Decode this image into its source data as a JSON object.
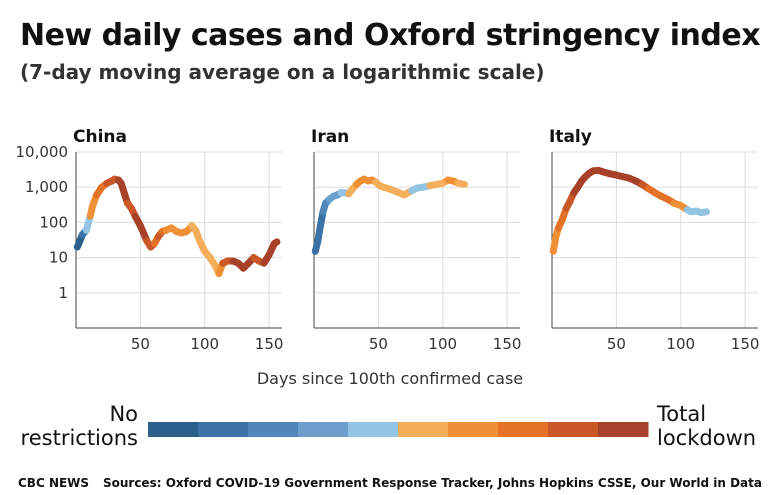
{
  "title": "New daily cases and Oxford stringency index",
  "subtitle": "(7-day moving average on a logarithmic scale)",
  "footer": {
    "brand": "CBC NEWS",
    "sources": "Sources: Oxford COVID-19 Government Response Tracker, Johns Hopkins CSSE, Our World in Data"
  },
  "legend": {
    "low_label_line1": "No",
    "low_label_line2": "restrictions",
    "high_label_line1": "Total",
    "high_label_line2": "lockdown",
    "colors": [
      "#2b5f8c",
      "#3b73a6",
      "#4f87ba",
      "#6c9fcd",
      "#93c4e3",
      "#f5ae5a",
      "#ef9036",
      "#e47328",
      "#c95826",
      "#a8412a"
    ]
  },
  "chart_data": {
    "type": "line",
    "xlabel": "Days since 100th confirmed case",
    "ylabel": "",
    "yscale": "log",
    "ylim": [
      0.1,
      10000
    ],
    "xlim": [
      0,
      160
    ],
    "yticks": [
      {
        "value": 1,
        "label": "1"
      },
      {
        "value": 10,
        "label": "10"
      },
      {
        "value": 100,
        "label": "100"
      },
      {
        "value": 1000,
        "label": "1,000"
      },
      {
        "value": 10000,
        "label": "10,000"
      }
    ],
    "xticks": [
      {
        "value": 50,
        "label": "50"
      },
      {
        "value": 100,
        "label": "100"
      },
      {
        "value": 150,
        "label": "150"
      }
    ],
    "grid": true,
    "color_by": "Oxford stringency index",
    "panels": [
      {
        "name": "China",
        "points": [
          [
            1,
            20,
            0
          ],
          [
            3,
            30,
            0
          ],
          [
            5,
            45,
            1
          ],
          [
            8,
            60,
            4
          ],
          [
            11,
            150,
            6
          ],
          [
            13,
            300,
            6
          ],
          [
            16,
            600,
            7
          ],
          [
            20,
            1000,
            7
          ],
          [
            24,
            1300,
            8
          ],
          [
            28,
            1500,
            8
          ],
          [
            30,
            1700,
            8
          ],
          [
            33,
            1600,
            9
          ],
          [
            35,
            1300,
            9
          ],
          [
            38,
            600,
            9
          ],
          [
            40,
            350,
            8
          ],
          [
            43,
            250,
            8
          ],
          [
            46,
            150,
            9
          ],
          [
            50,
            80,
            9
          ],
          [
            53,
            45,
            9
          ],
          [
            55,
            30,
            8
          ],
          [
            58,
            20,
            8
          ],
          [
            61,
            25,
            7
          ],
          [
            64,
            40,
            8
          ],
          [
            67,
            55,
            7
          ],
          [
            70,
            60,
            6
          ],
          [
            74,
            70,
            6
          ],
          [
            78,
            55,
            6
          ],
          [
            82,
            50,
            6
          ],
          [
            86,
            55,
            6
          ],
          [
            90,
            80,
            5
          ],
          [
            93,
            60,
            5
          ],
          [
            96,
            30,
            5
          ],
          [
            100,
            15,
            5
          ],
          [
            104,
            10,
            5
          ],
          [
            108,
            6,
            5
          ],
          [
            111,
            3.5,
            6
          ],
          [
            114,
            7,
            8
          ],
          [
            118,
            8,
            8
          ],
          [
            122,
            8,
            9
          ],
          [
            126,
            7,
            9
          ],
          [
            130,
            5,
            9
          ],
          [
            134,
            7,
            9
          ],
          [
            138,
            10,
            8
          ],
          [
            142,
            8,
            8
          ],
          [
            146,
            7,
            9
          ],
          [
            150,
            12,
            9
          ],
          [
            154,
            25,
            9
          ],
          [
            156,
            28,
            9
          ]
        ]
      },
      {
        "name": "Iran",
        "points": [
          [
            1,
            15,
            1
          ],
          [
            3,
            30,
            1
          ],
          [
            5,
            80,
            1
          ],
          [
            7,
            200,
            2
          ],
          [
            9,
            350,
            2
          ],
          [
            12,
            450,
            3
          ],
          [
            15,
            550,
            3
          ],
          [
            18,
            600,
            3
          ],
          [
            21,
            700,
            4
          ],
          [
            24,
            700,
            4
          ],
          [
            27,
            650,
            5
          ],
          [
            30,
            900,
            5
          ],
          [
            33,
            1200,
            6
          ],
          [
            36,
            1500,
            6
          ],
          [
            39,
            1700,
            6
          ],
          [
            42,
            1500,
            6
          ],
          [
            45,
            1600,
            6
          ],
          [
            48,
            1400,
            5
          ],
          [
            51,
            1100,
            5
          ],
          [
            54,
            1000,
            5
          ],
          [
            58,
            900,
            5
          ],
          [
            62,
            800,
            5
          ],
          [
            66,
            700,
            5
          ],
          [
            70,
            600,
            5
          ],
          [
            73,
            700,
            5
          ],
          [
            76,
            800,
            4
          ],
          [
            80,
            950,
            4
          ],
          [
            85,
            1000,
            4
          ],
          [
            90,
            1100,
            5
          ],
          [
            95,
            1200,
            5
          ],
          [
            100,
            1300,
            5
          ],
          [
            104,
            1600,
            6
          ],
          [
            108,
            1500,
            6
          ],
          [
            112,
            1300,
            5
          ],
          [
            117,
            1200,
            5
          ]
        ]
      },
      {
        "name": "Italy",
        "points": [
          [
            1,
            15,
            6
          ],
          [
            3,
            40,
            6
          ],
          [
            5,
            70,
            7
          ],
          [
            8,
            120,
            7
          ],
          [
            11,
            250,
            8
          ],
          [
            14,
            400,
            8
          ],
          [
            17,
            700,
            9
          ],
          [
            20,
            1000,
            9
          ],
          [
            23,
            1500,
            9
          ],
          [
            26,
            2000,
            9
          ],
          [
            29,
            2500,
            9
          ],
          [
            32,
            2900,
            9
          ],
          [
            36,
            3000,
            9
          ],
          [
            40,
            2700,
            9
          ],
          [
            45,
            2400,
            9
          ],
          [
            50,
            2200,
            9
          ],
          [
            55,
            2000,
            9
          ],
          [
            60,
            1800,
            9
          ],
          [
            65,
            1500,
            9
          ],
          [
            70,
            1200,
            8
          ],
          [
            75,
            900,
            7
          ],
          [
            80,
            700,
            7
          ],
          [
            85,
            550,
            7
          ],
          [
            90,
            450,
            7
          ],
          [
            95,
            350,
            6
          ],
          [
            100,
            300,
            6
          ],
          [
            105,
            230,
            4
          ],
          [
            108,
            200,
            4
          ],
          [
            112,
            210,
            4
          ],
          [
            116,
            190,
            4
          ],
          [
            120,
            200,
            4
          ]
        ]
      }
    ]
  }
}
